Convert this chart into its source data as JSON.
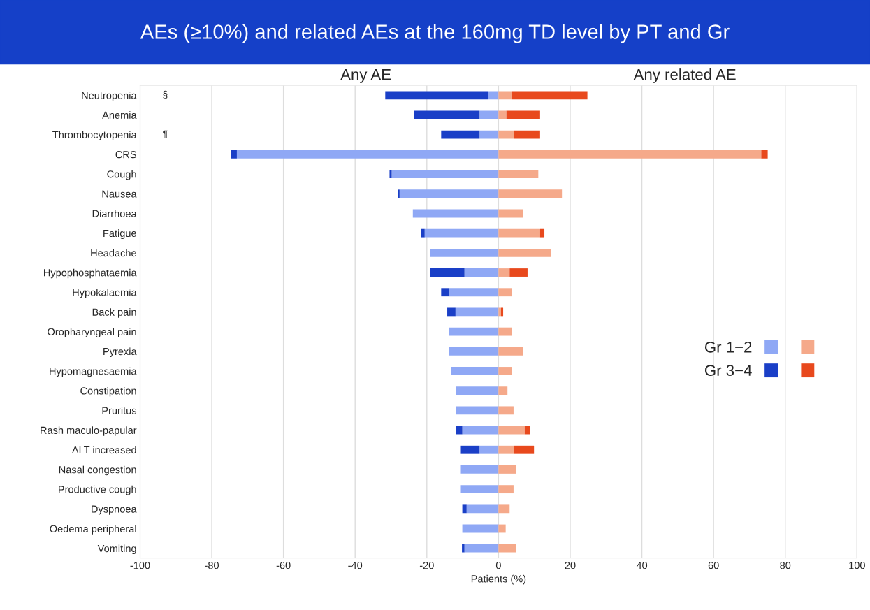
{
  "chart_data": {
    "type": "bar",
    "orientation": "horizontal",
    "stacked": true,
    "title": "AEs (≥10%) and related AEs at the 160mg TD level by PT and Gr",
    "xlabel": "Patients (%)",
    "categories": [
      "Neutropenia",
      "Anemia",
      "Thrombocytopenia",
      "CRS",
      "Cough",
      "Nausea",
      "Diarrhoea",
      "Fatigue",
      "Headache",
      "Hypophosphataemia",
      "Hypokalaemia",
      "Back pain",
      "Oropharyngeal pain",
      "Pyrexia",
      "Hypomagnesaemia",
      "Constipation",
      "Pruritus",
      "Rash maculo-papular",
      "ALT increased",
      "Nasal congestion",
      "Productive cough",
      "Dyspnoea",
      "Oedema peripheral",
      "Vomiting"
    ],
    "series": [
      {
        "name": "Gr 1−2",
        "color": "#8fa8f5",
        "values": [
          -2.8,
          -5.3,
          -5.3,
          -73.0,
          -29.8,
          -27.6,
          -23.9,
          -20.6,
          -19.1,
          -9.5,
          -13.9,
          -12.0,
          -13.9,
          -13.9,
          -13.2,
          -11.9,
          -11.9,
          -10.1,
          -5.3,
          -10.7,
          -10.7,
          -8.9,
          -10.1,
          -9.5
        ]
      },
      {
        "name": "Gr 3−4",
        "color": "#1a3fc7",
        "values": [
          -28.8,
          -18.2,
          -10.7,
          -1.6,
          -0.6,
          -0.4,
          null,
          -1.1,
          null,
          -9.6,
          -2.1,
          -2.3,
          null,
          null,
          null,
          null,
          null,
          -1.8,
          -5.4,
          null,
          null,
          -1.2,
          null,
          -0.7
        ]
      },
      {
        "color": "#f5a98a",
        "values": [
          3.7,
          2.2,
          4.4,
          73.3,
          11.1,
          17.7,
          6.8,
          11.6,
          14.6,
          3.1,
          3.8,
          0.7,
          3.8,
          6.8,
          3.8,
          2.5,
          4.2,
          7.3,
          4.4,
          4.9,
          4.2,
          3.1,
          2.0,
          4.9
        ]
      },
      {
        "color": "#e8491d",
        "values": [
          21.1,
          9.4,
          7.2,
          1.8,
          null,
          null,
          null,
          1.2,
          null,
          5.0,
          null,
          0.6,
          null,
          null,
          null,
          null,
          null,
          1.4,
          5.5,
          null,
          null,
          null,
          null,
          null
        ]
      }
    ],
    "xlim": [
      -100,
      100
    ],
    "xticks": [
      -100,
      -80,
      -60,
      -40,
      -20,
      0,
      20,
      40,
      60,
      80,
      100
    ],
    "grid": "x",
    "legend": "right",
    "annotations": [
      "Any AE",
      "Any related AE",
      "§",
      "¶"
    ]
  }
}
